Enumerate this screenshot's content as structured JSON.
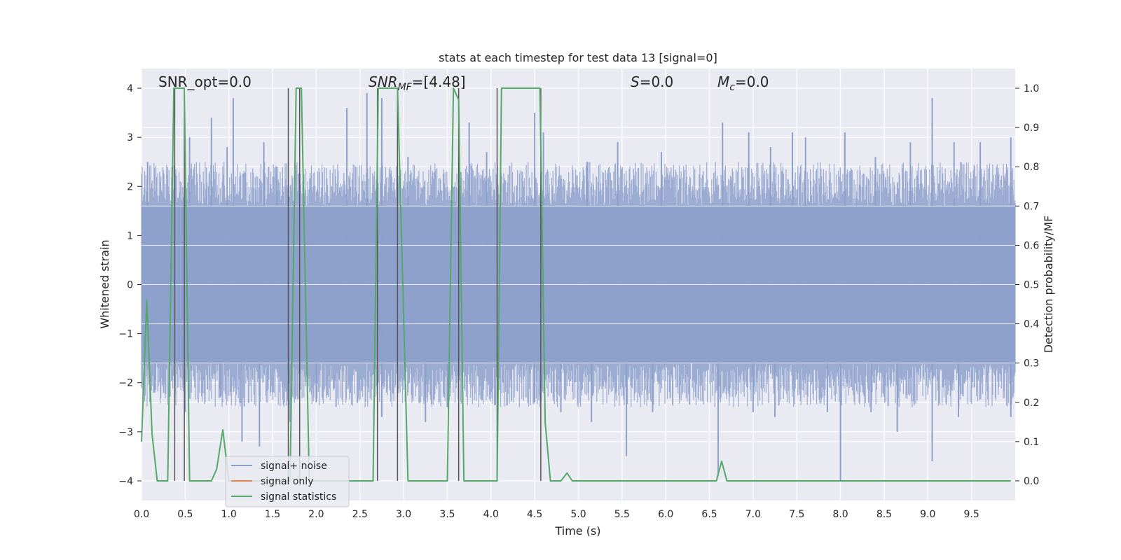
{
  "chart_data": {
    "type": "line",
    "title": "stats at each timestep for test data 13 [signal=0]",
    "xlabel": "Time (s)",
    "ylabel": "Whitened strain",
    "y2label": "Detection probability/MF",
    "xlim": [
      0.0,
      10.0
    ],
    "ylim": [
      -4.4,
      4.4
    ],
    "y2lim": [
      -0.05,
      1.05
    ],
    "grid": true,
    "legend_position": "lower-left",
    "xticks": [
      "0.0",
      "0.5",
      "1.0",
      "1.5",
      "2.0",
      "2.5",
      "3.0",
      "3.5",
      "4.0",
      "4.5",
      "5.0",
      "5.5",
      "6.0",
      "6.5",
      "7.0",
      "7.5",
      "8.0",
      "8.5",
      "9.0",
      "9.5"
    ],
    "yticks": [
      "4",
      "3",
      "2",
      "1",
      "0",
      "−1",
      "−2",
      "−3",
      "−4"
    ],
    "y2ticks": [
      "1.0",
      "0.9",
      "0.8",
      "0.7",
      "0.6",
      "0.5",
      "0.4",
      "0.3",
      "0.2",
      "0.1",
      "0.0"
    ],
    "annotations": {
      "snr_opt": "SNR_opt=0.0",
      "snr_mf_main": "SNR",
      "snr_mf_sub": "MF",
      "snr_mf_value": "=[4.48]",
      "s_main": "S",
      "s_value": "=0.0",
      "mc_main": "M",
      "mc_sub": "c",
      "mc_value": "=0.0"
    },
    "series": [
      {
        "name": "signal+ noise",
        "color": "#8da0cb",
        "axis": "left",
        "description_kind": "noise",
        "band": [
          -1.6,
          1.6
        ],
        "spikes_up": [
          [
            0.07,
            2.5
          ],
          [
            0.35,
            2.4
          ],
          [
            0.55,
            3.0
          ],
          [
            0.8,
            3.4
          ],
          [
            0.98,
            2.8
          ],
          [
            1.05,
            3.8
          ],
          [
            1.4,
            2.9
          ],
          [
            1.55,
            2.4
          ],
          [
            2.35,
            3.6
          ],
          [
            2.58,
            3.9
          ],
          [
            2.75,
            3.8
          ],
          [
            3.05,
            2.6
          ],
          [
            3.75,
            3.3
          ],
          [
            3.95,
            2.7
          ],
          [
            4.5,
            3.5
          ],
          [
            4.6,
            3.1
          ],
          [
            5.1,
            2.5
          ],
          [
            5.45,
            2.9
          ],
          [
            5.95,
            2.7
          ],
          [
            6.65,
            3.3
          ],
          [
            6.95,
            3.1
          ],
          [
            7.2,
            2.8
          ],
          [
            7.45,
            3.1
          ],
          [
            7.6,
            3.0
          ],
          [
            8.05,
            3.1
          ],
          [
            8.4,
            2.6
          ],
          [
            8.8,
            2.9
          ],
          [
            9.05,
            3.8
          ],
          [
            9.3,
            2.9
          ],
          [
            9.6,
            2.9
          ],
          [
            9.95,
            3.0
          ]
        ],
        "spikes_down": [
          [
            0.15,
            -2.2
          ],
          [
            0.5,
            -2.6
          ],
          [
            0.9,
            -2.3
          ],
          [
            1.15,
            -3.2
          ],
          [
            1.35,
            -3.3
          ],
          [
            1.7,
            -2.8
          ],
          [
            2.0,
            -2.4
          ],
          [
            2.75,
            -2.7
          ],
          [
            3.25,
            -2.8
          ],
          [
            3.5,
            -2.5
          ],
          [
            4.5,
            -2.4
          ],
          [
            4.8,
            -2.6
          ],
          [
            5.15,
            -2.8
          ],
          [
            5.55,
            -3.5
          ],
          [
            5.85,
            -2.6
          ],
          [
            6.6,
            -3.9
          ],
          [
            7.0,
            -2.6
          ],
          [
            7.25,
            -2.7
          ],
          [
            7.85,
            -2.6
          ],
          [
            8.0,
            -4.0
          ],
          [
            8.35,
            -2.6
          ],
          [
            8.65,
            -3.0
          ],
          [
            9.05,
            -3.6
          ],
          [
            9.35,
            -2.7
          ],
          [
            9.95,
            -2.7
          ]
        ]
      },
      {
        "name": "signal only",
        "color": "#dd8452",
        "axis": "left",
        "x": [
          0.0,
          10.0
        ],
        "y": [
          0.0,
          0.0
        ]
      },
      {
        "name": "signal statistics",
        "color": "#55a868",
        "axis": "right",
        "x": [
          0.0,
          0.06,
          0.12,
          0.18,
          0.3,
          0.37,
          0.41,
          0.49,
          0.55,
          0.8,
          0.86,
          0.93,
          1.0,
          1.08,
          1.7,
          1.77,
          1.83,
          1.92,
          1.97,
          2.65,
          2.71,
          2.93,
          2.99,
          3.05,
          3.5,
          3.57,
          3.63,
          3.69,
          4.07,
          4.12,
          4.56,
          4.62,
          4.68,
          4.8,
          4.87,
          4.93,
          6.58,
          6.64,
          6.7,
          9.95
        ],
        "y": [
          0.1,
          0.46,
          0.12,
          0.0,
          0.0,
          1.0,
          1.0,
          1.0,
          0.0,
          0.0,
          0.03,
          0.13,
          0.0,
          0.0,
          0.0,
          1.0,
          1.0,
          0.0,
          0.0,
          0.0,
          1.0,
          1.0,
          0.5,
          0.0,
          0.0,
          1.0,
          0.97,
          0.0,
          0.0,
          1.0,
          1.0,
          0.15,
          0.0,
          0.0,
          0.02,
          0.0,
          0.0,
          0.05,
          0.0,
          0.0
        ]
      }
    ],
    "vertical_markers": [
      0.38,
      0.49,
      1.68,
      1.81,
      2.7,
      2.93,
      3.63,
      4.07,
      4.57
    ]
  }
}
